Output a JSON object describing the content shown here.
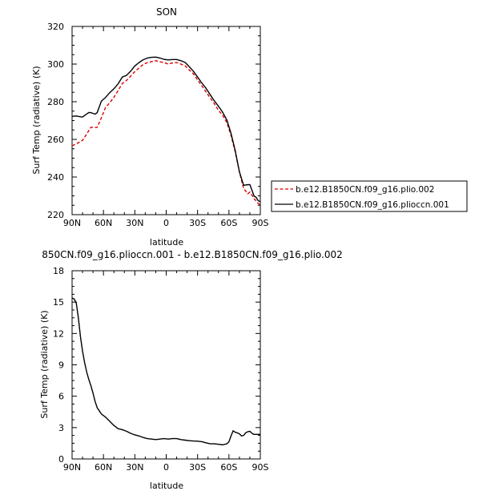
{
  "chart_data": [
    {
      "type": "line",
      "title": "SON",
      "xlabel": "latitude",
      "ylabel": "Surf Temp (radiative) (K)",
      "xlim": [
        90,
        -90
      ],
      "ylim": [
        220,
        320
      ],
      "xticks": [
        90,
        60,
        30,
        0,
        -30,
        -60,
        -90
      ],
      "xtick_labels": [
        "90N",
        "60N",
        "30N",
        "0",
        "30S",
        "60S",
        "90S"
      ],
      "yticks": [
        220,
        240,
        260,
        280,
        300,
        320
      ],
      "ytick_labels": [
        "220",
        "240",
        "260",
        "280",
        "300",
        "320"
      ],
      "legend_position": "right",
      "series": [
        {
          "name": "b.e12.B1850CN.f09_g16.plio.002",
          "color": "#dd0000",
          "dash": "dashed",
          "x": [
            90,
            86,
            80,
            76,
            72,
            68,
            66,
            62,
            58,
            54,
            50,
            46,
            42,
            38,
            34,
            30,
            26,
            22,
            18,
            14,
            10,
            6,
            2,
            -2,
            -6,
            -10,
            -14,
            -18,
            -22,
            -26,
            -30,
            -34,
            -38,
            -42,
            -46,
            -50,
            -54,
            -58,
            -62,
            -66,
            -70,
            -74,
            -78,
            -80,
            -82,
            -84,
            -86,
            -88,
            -90
          ],
          "y": [
            256.6,
            257.6,
            259.5,
            262.9,
            266.4,
            266.3,
            266.4,
            271.5,
            277.0,
            279.4,
            282.4,
            285.9,
            289.7,
            291.3,
            293.6,
            296.0,
            297.9,
            299.8,
            300.8,
            301.3,
            301.8,
            301.2,
            300.8,
            300.0,
            300.6,
            300.8,
            300.0,
            299.1,
            296.9,
            294.8,
            291.6,
            288.5,
            285.3,
            282.1,
            279.0,
            275.4,
            272.8,
            268.9,
            262.1,
            253.3,
            242.7,
            234.0,
            231.1,
            232.0,
            230.3,
            228.5,
            227.3,
            225.9,
            225.0
          ]
        },
        {
          "name": "b.e12.B1850CN.f09_g16.plioccn.001",
          "color": "#000000",
          "dash": "solid",
          "x": [
            90,
            86,
            82,
            80,
            76,
            74,
            72,
            68,
            66,
            62,
            58,
            54,
            50,
            46,
            42,
            38,
            34,
            30,
            26,
            22,
            18,
            14,
            10,
            6,
            2,
            -2,
            -6,
            -10,
            -14,
            -18,
            -22,
            -26,
            -30,
            -34,
            -38,
            -42,
            -46,
            -50,
            -54,
            -58,
            -62,
            -66,
            -70,
            -74,
            -78,
            -80,
            -82,
            -84,
            -86,
            -88,
            -90
          ],
          "y": [
            272.2,
            272.4,
            272.0,
            271.9,
            273.5,
            274.3,
            274.2,
            273.4,
            274.2,
            280.3,
            282.3,
            284.8,
            286.9,
            289.5,
            293.1,
            294.0,
            296.2,
            299.0,
            300.8,
            302.3,
            303.2,
            303.6,
            303.7,
            303.2,
            302.5,
            302.2,
            302.4,
            302.4,
            301.8,
            300.9,
            298.6,
            296.2,
            293.1,
            290.0,
            287.2,
            283.8,
            280.5,
            277.6,
            274.4,
            270.3,
            263.2,
            254.0,
            242.8,
            235.6,
            235.9,
            236.0,
            233.0,
            229.9,
            229.2,
            227.4,
            226.9
          ]
        }
      ]
    },
    {
      "type": "line",
      "title": "850CN.f09_g16.plioccn.001 - b.e12.B1850CN.f09_g16.plio.002",
      "xlabel": "latitude",
      "ylabel": "Surf Temp (radiative) (K)",
      "xlim": [
        90,
        -90
      ],
      "ylim": [
        0,
        18
      ],
      "xticks": [
        90,
        60,
        30,
        0,
        -30,
        -60,
        -90
      ],
      "xtick_labels": [
        "90N",
        "60N",
        "30N",
        "0",
        "30S",
        "60S",
        "90S"
      ],
      "yticks": [
        0,
        3,
        6,
        9,
        12,
        15,
        18
      ],
      "ytick_labels": [
        "0",
        "3",
        "6",
        "9",
        "12",
        "15",
        "18"
      ],
      "series": [
        {
          "color": "#000000",
          "dash": "solid",
          "x": [
            90,
            88,
            86,
            84,
            82,
            80,
            78,
            76,
            74,
            72,
            70,
            68,
            66,
            64,
            62,
            60,
            58,
            56,
            54,
            52,
            50,
            48,
            46,
            44,
            42,
            38,
            34,
            30,
            26,
            22,
            18,
            14,
            10,
            6,
            2,
            -2,
            -6,
            -10,
            -14,
            -18,
            -22,
            -26,
            -30,
            -34,
            -38,
            -42,
            -46,
            -50,
            -54,
            -58,
            -60,
            -62,
            -64,
            -66,
            -68,
            -70,
            -72,
            -74,
            -76,
            -78,
            -80,
            -82,
            -84,
            -86,
            -88,
            -90
          ],
          "y": [
            15.4,
            15.3,
            14.9,
            13.5,
            11.7,
            10.3,
            9.2,
            8.3,
            7.6,
            7.0,
            6.3,
            5.5,
            4.9,
            4.6,
            4.3,
            4.15,
            4.0,
            3.8,
            3.6,
            3.4,
            3.2,
            3.05,
            2.9,
            2.85,
            2.8,
            2.65,
            2.45,
            2.3,
            2.2,
            2.05,
            1.95,
            1.9,
            1.85,
            1.9,
            1.95,
            1.9,
            1.95,
            1.95,
            1.85,
            1.8,
            1.75,
            1.72,
            1.7,
            1.65,
            1.55,
            1.45,
            1.45,
            1.4,
            1.35,
            1.45,
            1.65,
            2.2,
            2.7,
            2.55,
            2.5,
            2.4,
            2.2,
            2.25,
            2.5,
            2.6,
            2.65,
            2.45,
            2.35,
            2.35,
            2.35,
            2.35
          ]
        }
      ]
    }
  ]
}
